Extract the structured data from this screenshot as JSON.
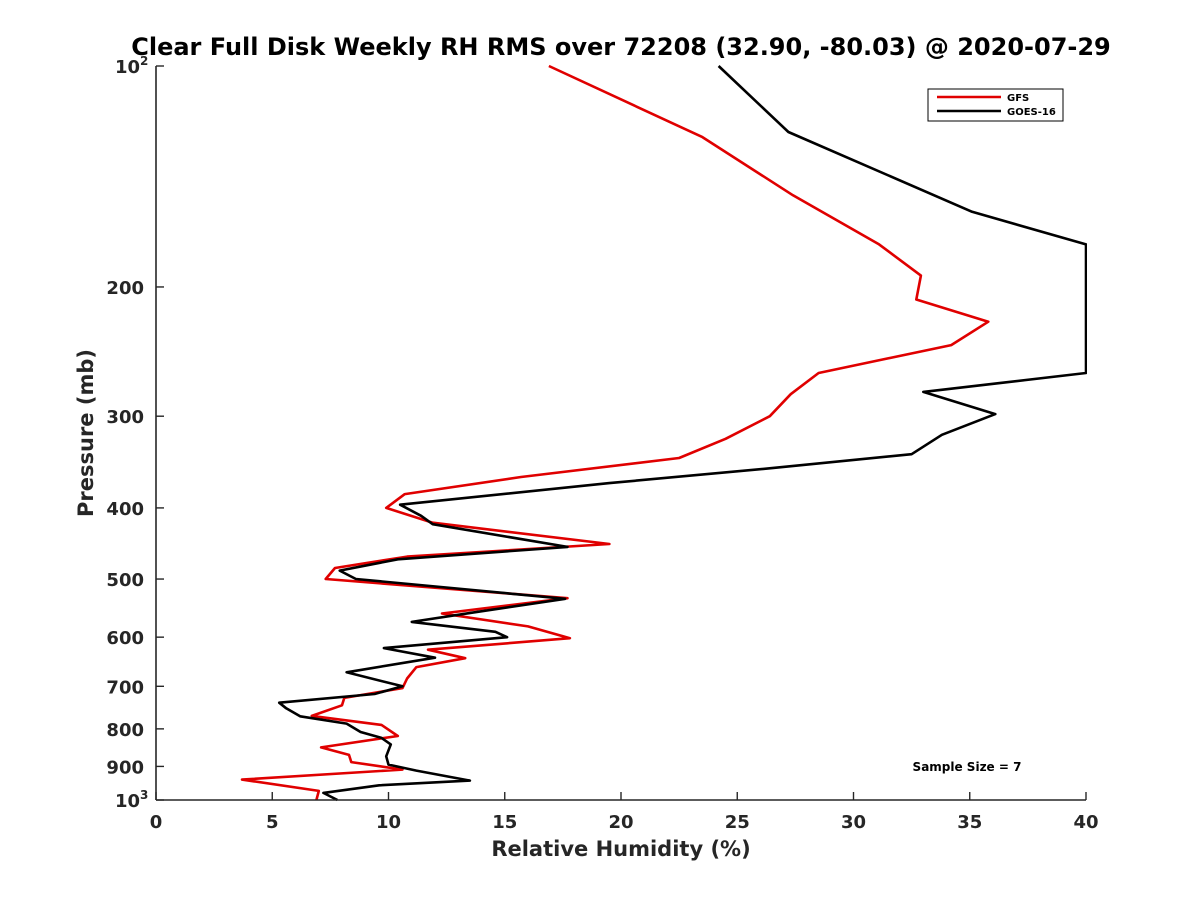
{
  "chart_data": {
    "type": "line",
    "title": "Clear Full Disk Weekly RH RMS over 72208 (32.90, -80.03) @ 2020-07-29",
    "xlabel": "Relative Humidity (%)",
    "ylabel": "Pressure (mb)",
    "xlim": [
      0,
      40
    ],
    "ylim": [
      100,
      1000
    ],
    "y_scale": "log",
    "y_reversed": true,
    "x_ticks": [
      0,
      5,
      10,
      15,
      20,
      25,
      30,
      35,
      40
    ],
    "y_ticks": [
      {
        "value": 100,
        "label": "10",
        "exp": "2"
      },
      {
        "value": 200,
        "label": "200",
        "exp": ""
      },
      {
        "value": 300,
        "label": "300",
        "exp": ""
      },
      {
        "value": 400,
        "label": "400",
        "exp": ""
      },
      {
        "value": 500,
        "label": "500",
        "exp": ""
      },
      {
        "value": 600,
        "label": "600",
        "exp": ""
      },
      {
        "value": 700,
        "label": "700",
        "exp": ""
      },
      {
        "value": 800,
        "label": "800",
        "exp": ""
      },
      {
        "value": 900,
        "label": "900",
        "exp": ""
      },
      {
        "value": 1000,
        "label": "10",
        "exp": "3"
      }
    ],
    "grid": false,
    "legend_position": "top-right",
    "annotation": "Sample Size = 7",
    "series": [
      {
        "name": "GFS",
        "color": "#e00000",
        "points": [
          [
            16.9,
            100
          ],
          [
            23.5,
            125
          ],
          [
            27.4,
            150
          ],
          [
            31.1,
            175
          ],
          [
            32.9,
            193
          ],
          [
            32.7,
            208
          ],
          [
            35.8,
            223
          ],
          [
            34.2,
            240
          ],
          [
            28.5,
            262
          ],
          [
            27.3,
            280
          ],
          [
            26.4,
            300
          ],
          [
            24.5,
            322
          ],
          [
            22.5,
            342
          ],
          [
            15.7,
            363
          ],
          [
            10.7,
            383
          ],
          [
            9.9,
            400
          ],
          [
            11.9,
            419
          ],
          [
            19.5,
            448
          ],
          [
            10.8,
            466
          ],
          [
            7.7,
            483
          ],
          [
            7.3,
            500
          ],
          [
            17.7,
            531
          ],
          [
            12.3,
            557
          ],
          [
            16.0,
            580
          ],
          [
            17.8,
            602
          ],
          [
            11.7,
            624
          ],
          [
            13.3,
            641
          ],
          [
            11.2,
            659
          ],
          [
            10.8,
            683
          ],
          [
            10.6,
            704
          ],
          [
            8.1,
            726
          ],
          [
            8.0,
            743
          ],
          [
            6.7,
            768
          ],
          [
            9.7,
            790
          ],
          [
            10.4,
            818
          ],
          [
            7.1,
            848
          ],
          [
            8.3,
            868
          ],
          [
            8.4,
            888
          ],
          [
            10.6,
            909
          ],
          [
            3.7,
            938
          ],
          [
            7.0,
            972
          ],
          [
            6.9,
            1000
          ]
        ]
      },
      {
        "name": "GOES-16",
        "color": "#000000",
        "points": [
          [
            24.2,
            100
          ],
          [
            27.2,
            123
          ],
          [
            35.1,
            158
          ],
          [
            40.0,
            175
          ],
          [
            40.0,
            262
          ],
          [
            33.0,
            278
          ],
          [
            36.1,
            298
          ],
          [
            33.8,
            318
          ],
          [
            32.5,
            338
          ],
          [
            26.5,
            353
          ],
          [
            19.5,
            370
          ],
          [
            10.5,
            396
          ],
          [
            11.4,
            410
          ],
          [
            11.9,
            421
          ],
          [
            17.7,
            452
          ],
          [
            10.4,
            470
          ],
          [
            7.9,
            487
          ],
          [
            8.6,
            500
          ],
          [
            17.6,
            532
          ],
          [
            13.7,
            555
          ],
          [
            11.0,
            572
          ],
          [
            14.6,
            590
          ],
          [
            15.1,
            600
          ],
          [
            9.8,
            621
          ],
          [
            12.0,
            640
          ],
          [
            8.2,
            670
          ],
          [
            10.6,
            700
          ],
          [
            9.4,
            717
          ],
          [
            5.3,
            737
          ],
          [
            5.6,
            750
          ],
          [
            6.2,
            769
          ],
          [
            8.2,
            787
          ],
          [
            8.8,
            808
          ],
          [
            9.7,
            823
          ],
          [
            10.1,
            840
          ],
          [
            9.9,
            872
          ],
          [
            10.0,
            895
          ],
          [
            11.2,
            912
          ],
          [
            13.5,
            941
          ],
          [
            9.6,
            955
          ],
          [
            7.2,
            978
          ],
          [
            7.8,
            1000
          ]
        ]
      }
    ]
  }
}
